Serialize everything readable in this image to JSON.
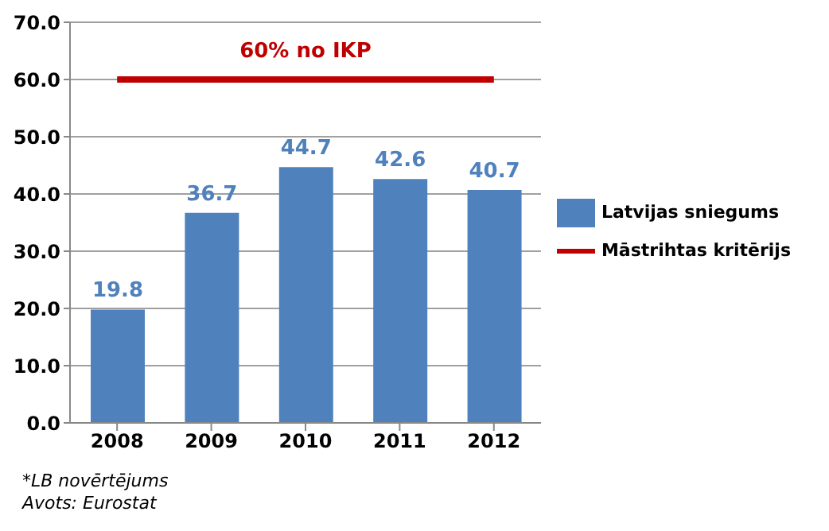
{
  "chart_data": {
    "type": "bar",
    "categories": [
      "2008",
      "2009",
      "2010",
      "2011",
      "2012"
    ],
    "series": [
      {
        "name": "Latvijas sniegums",
        "color": "#4f81bd",
        "values": [
          19.8,
          36.7,
          44.7,
          42.6,
          40.7
        ],
        "value_labels": [
          "19.8",
          "36.7",
          "44.7",
          "42.6",
          "40.7"
        ]
      },
      {
        "name": "Māstrihtas kritērijs",
        "type": "line",
        "color": "#c00000",
        "values": [
          60,
          60,
          60,
          60,
          60
        ]
      }
    ],
    "ylim": [
      0,
      70
    ],
    "yticks": [
      {
        "value": 0,
        "label": "0.0"
      },
      {
        "value": 10,
        "label": "10.0"
      },
      {
        "value": 20,
        "label": "20.0"
      },
      {
        "value": 30,
        "label": "30.0"
      },
      {
        "value": 40,
        "label": "40.0"
      },
      {
        "value": 50,
        "label": "50.0"
      },
      {
        "value": 60,
        "label": "60.0"
      },
      {
        "value": 70,
        "label": "70.0"
      }
    ],
    "grid": "y",
    "legend": "right",
    "marker": "none",
    "line_style": "solid",
    "annotations": [
      {
        "text": "60% no IKP",
        "x": "2010",
        "y": 60
      },
      "*LB novērtējums",
      "Avots: Eurostat"
    ]
  }
}
